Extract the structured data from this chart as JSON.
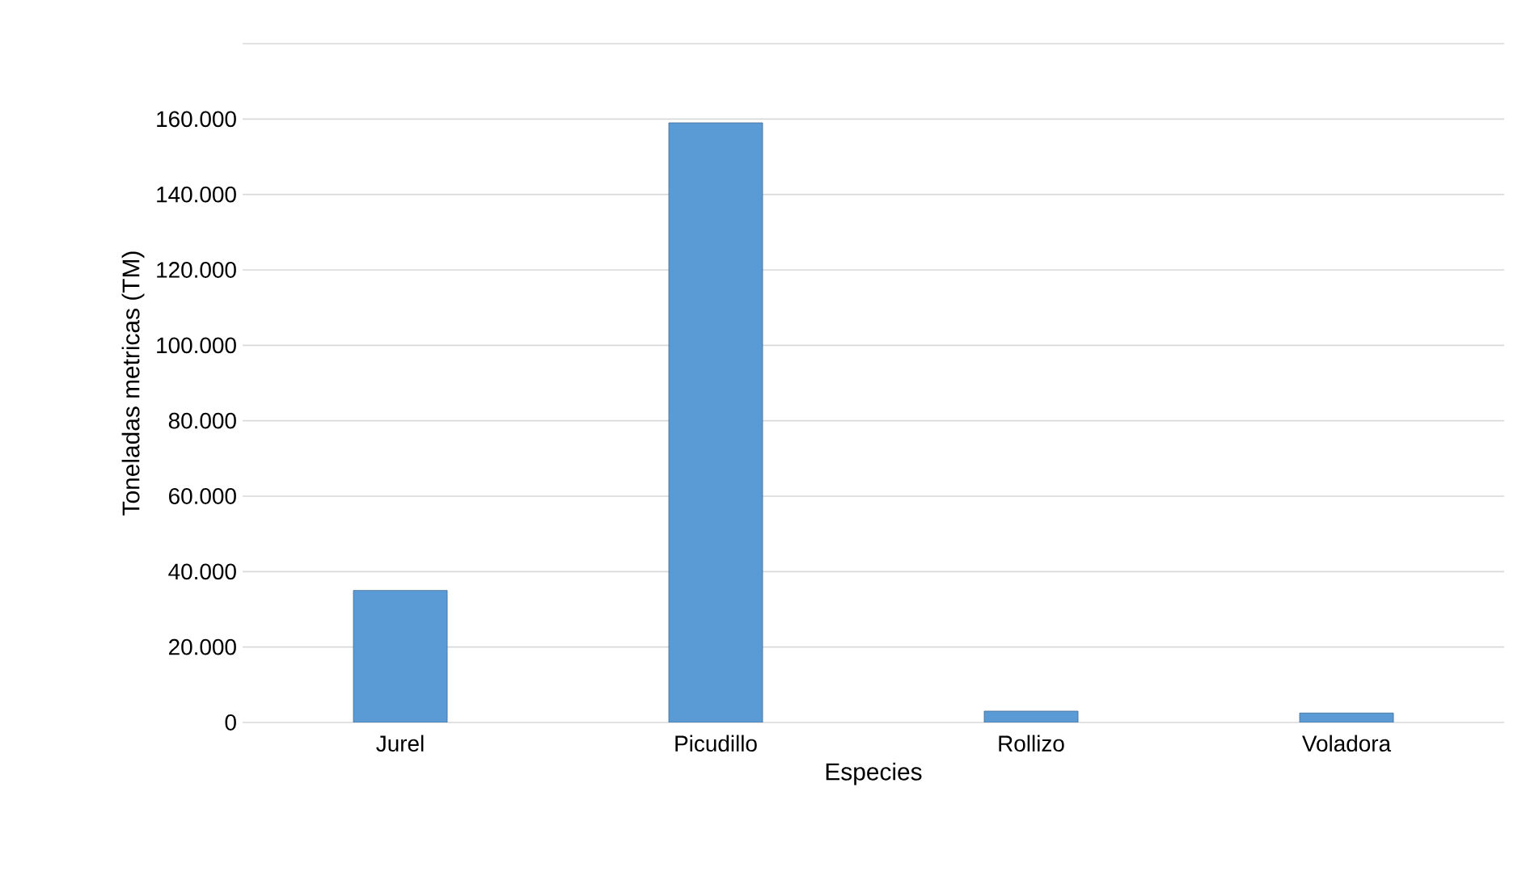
{
  "chart_data": {
    "type": "bar",
    "xlabel": "Especies",
    "ylabel": "Toneladas metricas (TM)",
    "categories": [
      "Jurel",
      "Picudillo",
      "Rollizo",
      "Voladora"
    ],
    "values": [
      35000,
      159000,
      3000,
      2500
    ],
    "color": "#5b9bd5",
    "ylim": [
      0,
      180000
    ],
    "yticks": [
      {
        "value": 0,
        "label": "0"
      },
      {
        "value": 20000,
        "label": "20.000"
      },
      {
        "value": 40000,
        "label": "40.000"
      },
      {
        "value": 60000,
        "label": "60.000"
      },
      {
        "value": 80000,
        "label": "80.000"
      },
      {
        "value": 100000,
        "label": "100.000"
      },
      {
        "value": 120000,
        "label": "120.000"
      },
      {
        "value": 140000,
        "label": "140.000"
      },
      {
        "value": 160000,
        "label": "160.000"
      },
      {
        "value": 180000,
        "label": null
      }
    ],
    "grid": "y"
  }
}
